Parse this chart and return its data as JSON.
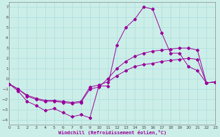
{
  "xlabel": "Windchill (Refroidissement éolien,°C)",
  "background_color": "#cceee8",
  "grid_color": "#aadddd",
  "line_color": "#990099",
  "xlim": [
    0,
    23
  ],
  "ylim": [
    -4.5,
    7.5
  ],
  "xticks": [
    0,
    1,
    2,
    3,
    4,
    5,
    6,
    7,
    8,
    9,
    10,
    11,
    12,
    13,
    14,
    15,
    16,
    17,
    18,
    19,
    20,
    21,
    22,
    23
  ],
  "yticks": [
    -4,
    -3,
    -2,
    -1,
    0,
    1,
    2,
    3,
    4,
    5,
    6,
    7
  ],
  "series": [
    {
      "x": [
        0,
        1,
        2,
        3,
        4,
        5,
        6,
        7,
        8,
        9,
        10,
        11,
        12,
        13,
        14,
        15,
        16,
        17,
        18,
        19,
        20,
        21,
        22,
        23
      ],
      "y": [
        -0.5,
        -1.2,
        -2.2,
        -2.6,
        -3.1,
        -2.9,
        -3.3,
        -3.7,
        -3.5,
        -3.8,
        -0.7,
        -0.7,
        3.3,
        5.0,
        5.8,
        7.0,
        6.8,
        4.5,
        2.5,
        2.5,
        1.2,
        0.8,
        -0.4,
        -0.3
      ]
    },
    {
      "x": [
        0,
        1,
        2,
        3,
        4,
        5,
        6,
        7,
        8,
        9,
        10,
        11,
        12,
        13,
        14,
        15,
        16,
        17,
        18,
        19,
        20,
        21,
        22,
        23
      ],
      "y": [
        -0.5,
        -1.0,
        -1.7,
        -2.0,
        -2.2,
        -2.2,
        -2.3,
        -2.4,
        -2.3,
        -1.0,
        -0.8,
        0.0,
        1.0,
        1.7,
        2.2,
        2.5,
        2.7,
        2.8,
        2.9,
        3.0,
        3.0,
        2.8,
        -0.4,
        -0.3
      ]
    },
    {
      "x": [
        0,
        1,
        2,
        3,
        4,
        5,
        6,
        7,
        8,
        9,
        10,
        11,
        12,
        13,
        14,
        15,
        16,
        17,
        18,
        19,
        20,
        21,
        22,
        23
      ],
      "y": [
        -0.5,
        -1.0,
        -1.6,
        -1.9,
        -2.1,
        -2.1,
        -2.2,
        -2.3,
        -2.2,
        -0.8,
        -0.6,
        -0.3,
        0.3,
        0.8,
        1.2,
        1.4,
        1.5,
        1.7,
        1.8,
        1.9,
        2.0,
        1.9,
        -0.4,
        -0.3
      ]
    }
  ]
}
